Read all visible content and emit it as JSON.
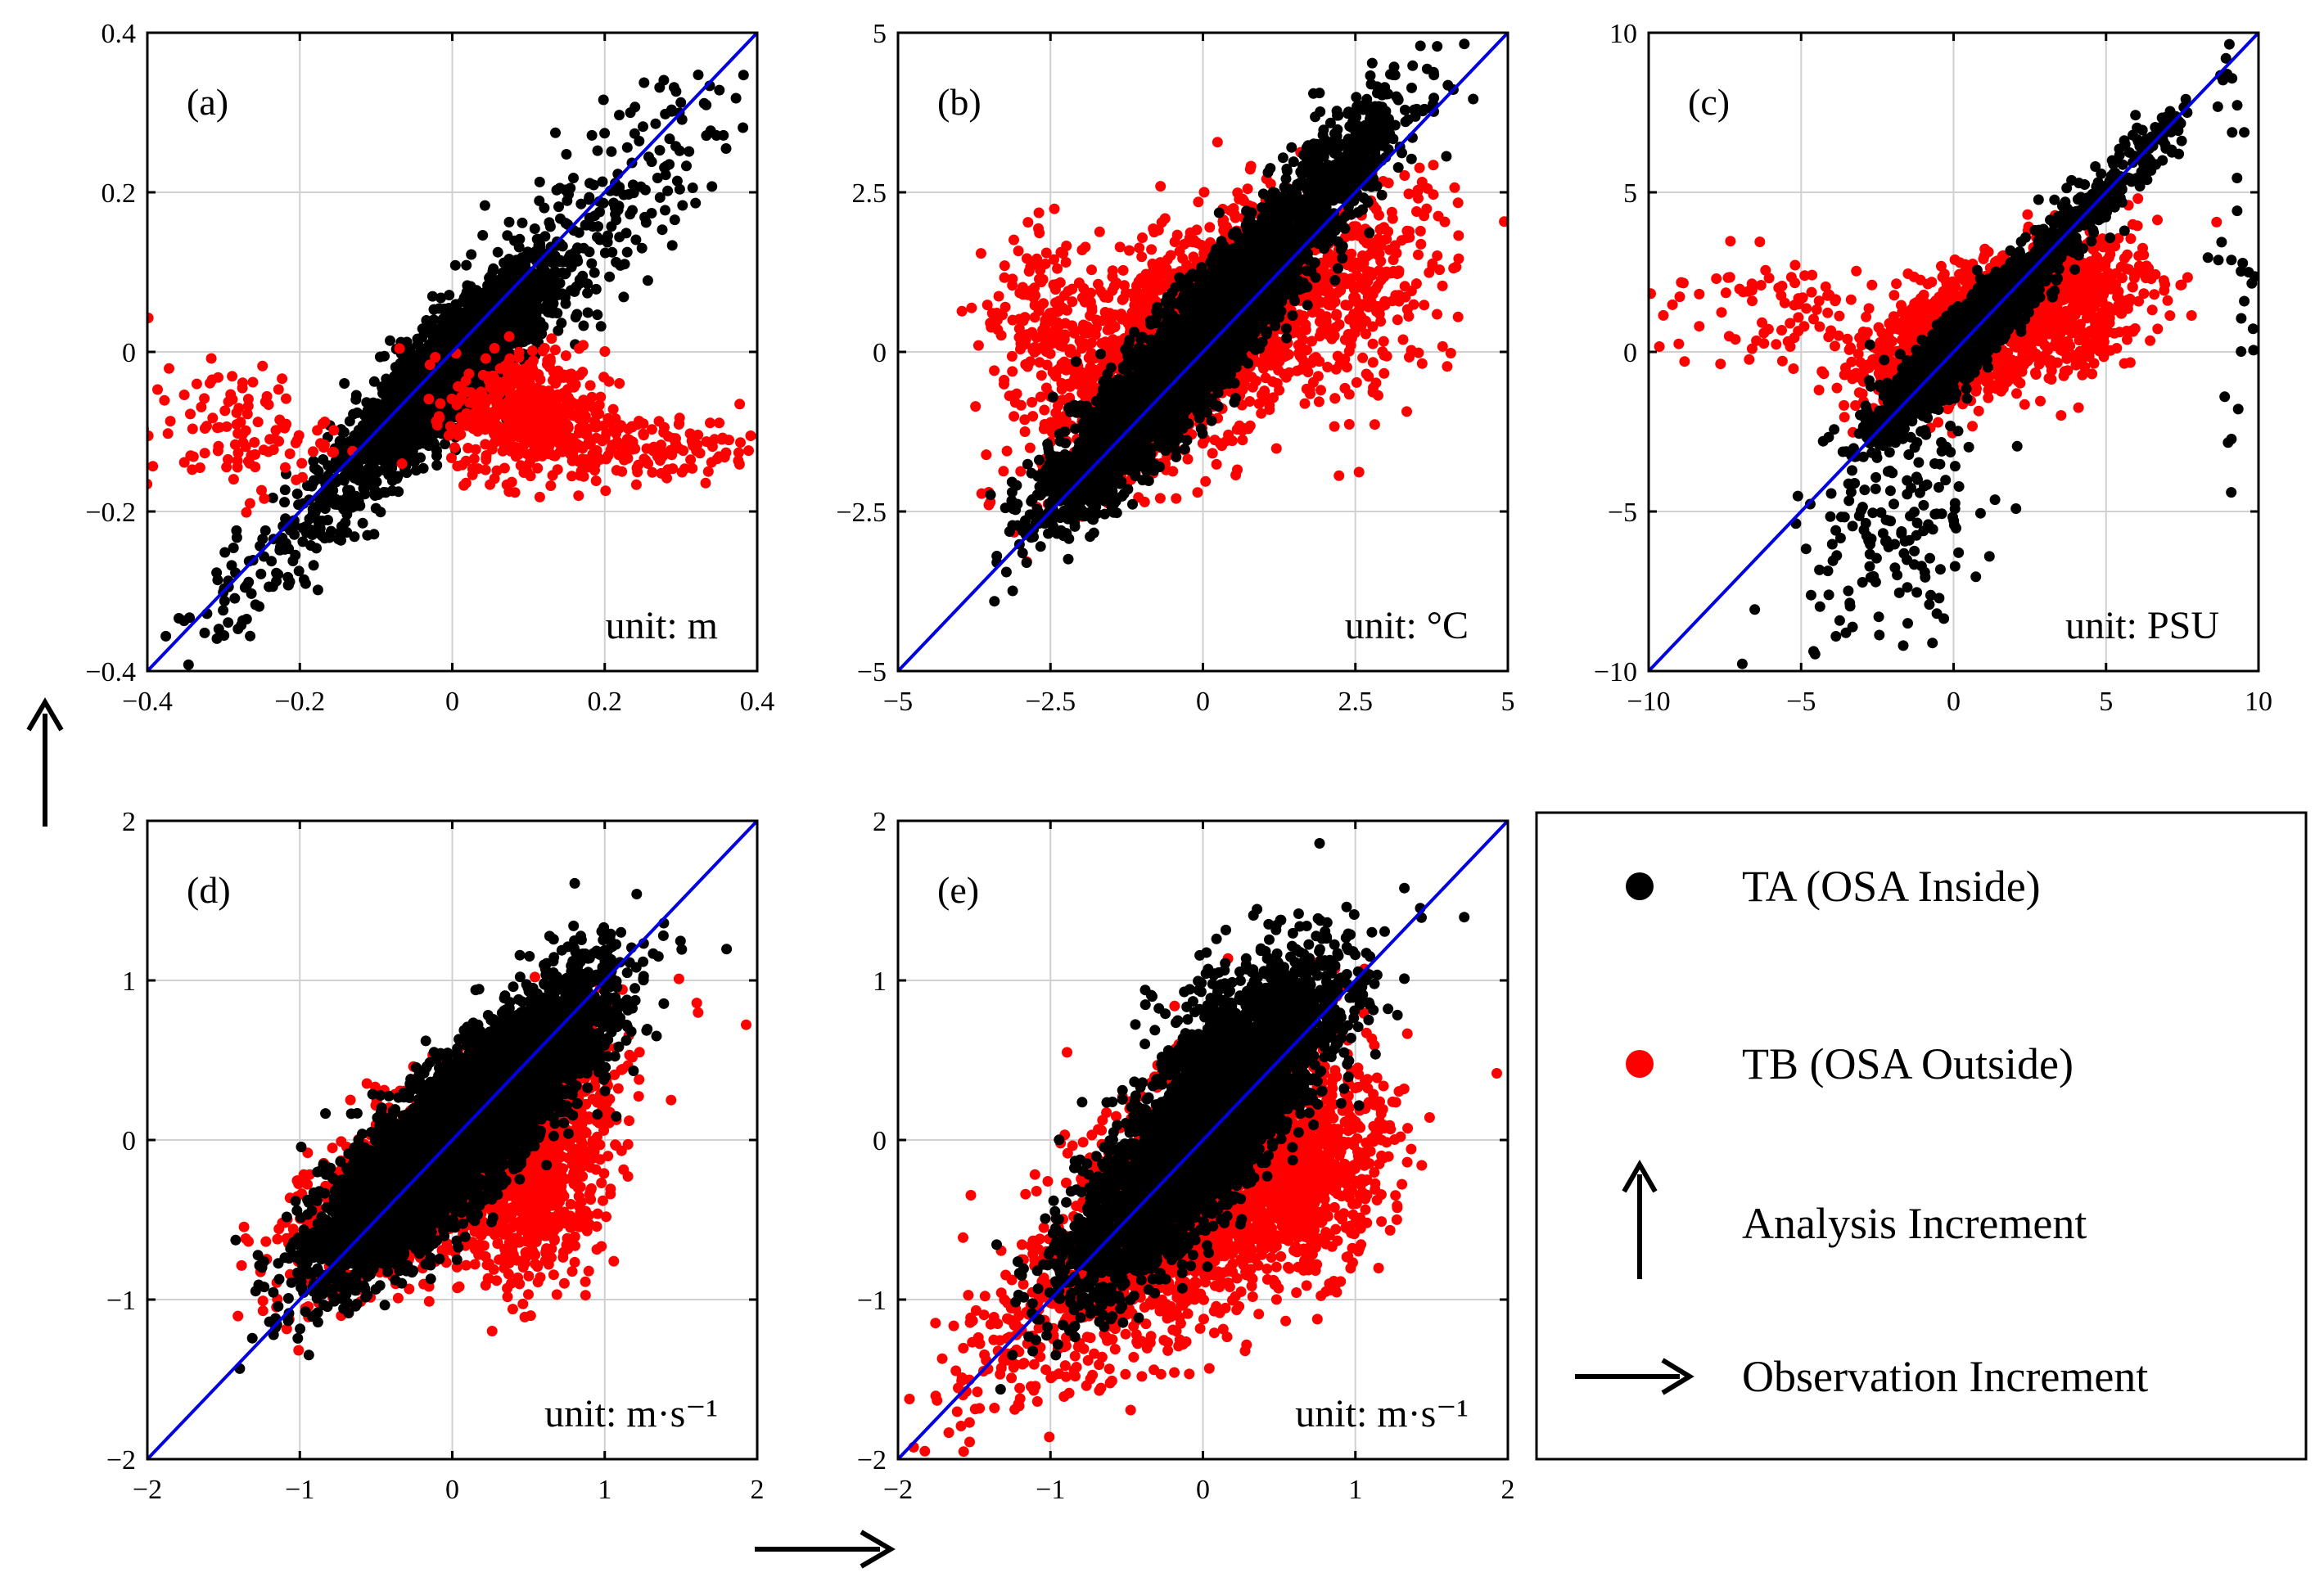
{
  "chart_data": [
    {
      "type": "scatter",
      "id": "a",
      "panel_label": "(a)",
      "unit": "unit: m",
      "xlim": [
        -0.4,
        0.4
      ],
      "ylim": [
        -0.4,
        0.4
      ],
      "xticks": [
        -0.4,
        -0.2,
        0,
        0.2,
        0.4
      ],
      "yticks": [
        -0.4,
        -0.2,
        0,
        0.2,
        0.4
      ],
      "xtick_labels": [
        "−0.4",
        "−0.2",
        "0",
        "0.2",
        "0.4"
      ],
      "ytick_labels": [
        "−0.4",
        "−0.2",
        "0",
        "0.2",
        "0.4"
      ],
      "grid": true,
      "reference_line": "y = x",
      "series": [
        {
          "name": "TA (OSA Inside)",
          "color": "#000000",
          "clusters": [
            {
              "cx": 0.0,
              "cy": -0.02,
              "sx": 0.06,
              "sy": 0.06,
              "corr": 0.85,
              "n": 2600
            },
            {
              "cx": 0.16,
              "cy": 0.14,
              "sx": 0.1,
              "sy": 0.1,
              "corr": 0.8,
              "n": 260
            },
            {
              "cx": -0.15,
              "cy": -0.18,
              "sx": 0.09,
              "sy": 0.09,
              "corr": 0.9,
              "n": 260
            }
          ]
        },
        {
          "name": "TB (OSA Outside)",
          "color": "#ff0000",
          "clusters": [
            {
              "cx": 0.1,
              "cy": -0.08,
              "sx": 0.05,
              "sy": 0.04,
              "corr": 0.0,
              "n": 500
            },
            {
              "cx": 0.25,
              "cy": -0.12,
              "sx": 0.08,
              "sy": 0.02,
              "corr": 0.0,
              "n": 140
            },
            {
              "cx": -0.28,
              "cy": -0.1,
              "sx": 0.06,
              "sy": 0.04,
              "corr": 0.0,
              "n": 110
            }
          ]
        }
      ]
    },
    {
      "type": "scatter",
      "id": "b",
      "panel_label": "(b)",
      "unit": "unit: °C",
      "xlim": [
        -5,
        5
      ],
      "ylim": [
        -5,
        5
      ],
      "xticks": [
        -5,
        -2.5,
        0,
        2.5,
        5
      ],
      "yticks": [
        -5,
        -2.5,
        0,
        2.5,
        5
      ],
      "xtick_labels": [
        "−5",
        "−2.5",
        "0",
        "2.5",
        "5"
      ],
      "ytick_labels": [
        "−5",
        "−2.5",
        "0",
        "2.5",
        "5"
      ],
      "grid": true,
      "reference_line": "y = x",
      "series": [
        {
          "name": "TB (OSA Outside)",
          "color": "#ff0000",
          "clusters": [
            {
              "cx": -0.2,
              "cy": 0.2,
              "sx": 1.2,
              "sy": 1.0,
              "corr": 0.6,
              "n": 2000
            },
            {
              "cx": 2.5,
              "cy": 1.0,
              "sx": 0.8,
              "sy": 0.9,
              "corr": 0.3,
              "n": 300
            },
            {
              "cx": -2.6,
              "cy": 0.6,
              "sx": 0.5,
              "sy": 0.6,
              "corr": 0.0,
              "n": 150
            }
          ]
        },
        {
          "name": "TA (OSA Inside)",
          "color": "#000000",
          "clusters": [
            {
              "cx": -0.1,
              "cy": 0.1,
              "sx": 1.0,
              "sy": 1.1,
              "corr": 0.9,
              "n": 3500
            },
            {
              "cx": 2.2,
              "cy": 2.9,
              "sx": 0.7,
              "sy": 0.7,
              "corr": 0.8,
              "n": 400
            },
            {
              "cx": -2.0,
              "cy": -2.0,
              "sx": 0.5,
              "sy": 0.5,
              "corr": 0.6,
              "n": 250
            }
          ]
        }
      ]
    },
    {
      "type": "scatter",
      "id": "c",
      "panel_label": "(c)",
      "unit": "unit: PSU",
      "xlim": [
        -10,
        10
      ],
      "ylim": [
        -10,
        10
      ],
      "xticks": [
        -10,
        -5,
        0,
        5,
        10
      ],
      "yticks": [
        -10,
        -5,
        0,
        5,
        10
      ],
      "xtick_labels": [
        "−10",
        "−5",
        "0",
        "5",
        "10"
      ],
      "ytick_labels": [
        "−10",
        "−5",
        "0",
        "5",
        "10"
      ],
      "grid": true,
      "reference_line": "y = x",
      "series": [
        {
          "name": "TB (OSA Outside)",
          "color": "#ff0000",
          "clusters": [
            {
              "cx": 0.5,
              "cy": 0.6,
              "sx": 1.6,
              "sy": 1.1,
              "corr": 0.6,
              "n": 1600
            },
            {
              "cx": 4.0,
              "cy": 1.5,
              "sx": 1.4,
              "sy": 1.2,
              "corr": 0.3,
              "n": 400
            },
            {
              "cx": -6.0,
              "cy": 1.2,
              "sx": 2.0,
              "sy": 1.0,
              "corr": 0.0,
              "n": 90
            }
          ]
        },
        {
          "name": "TA (OSA Inside)",
          "color": "#000000",
          "clusters": [
            {
              "cx": 0.3,
              "cy": 0.3,
              "sx": 1.3,
              "sy": 1.3,
              "corr": 0.92,
              "n": 2200
            },
            {
              "cx": 4.5,
              "cy": 4.5,
              "sx": 1.8,
              "sy": 1.8,
              "corr": 0.95,
              "n": 300
            },
            {
              "cx": -2.0,
              "cy": -5.5,
              "sx": 1.8,
              "sy": 2.0,
              "corr": 0.4,
              "n": 160
            },
            {
              "cx": 9.3,
              "cy": 2.0,
              "sx": 0.5,
              "sy": 3.0,
              "corr": 0.0,
              "n": 30
            }
          ]
        }
      ]
    },
    {
      "type": "scatter",
      "id": "d",
      "panel_label": "(d)",
      "unit": "unit: m·s⁻¹",
      "xlim": [
        -2,
        2
      ],
      "ylim": [
        -2,
        2
      ],
      "xticks": [
        -2,
        -1,
        0,
        1,
        2
      ],
      "yticks": [
        -2,
        -1,
        0,
        1,
        2
      ],
      "xtick_labels": [
        "−2",
        "−1",
        "0",
        "1",
        "2"
      ],
      "ytick_labels": [
        "−2",
        "−1",
        "0",
        "1",
        "2"
      ],
      "grid": true,
      "reference_line": "y = x",
      "series": [
        {
          "name": "TB (OSA Outside)",
          "color": "#ff0000",
          "clusters": [
            {
              "cx": 0.0,
              "cy": -0.1,
              "sx": 0.45,
              "sy": 0.35,
              "corr": 0.7,
              "n": 2500
            },
            {
              "cx": 0.55,
              "cy": -0.35,
              "sx": 0.22,
              "sy": 0.28,
              "corr": 0.3,
              "n": 600
            }
          ]
        },
        {
          "name": "TA (OSA Inside)",
          "color": "#000000",
          "clusters": [
            {
              "cx": 0.0,
              "cy": 0.0,
              "sx": 0.42,
              "sy": 0.4,
              "corr": 0.82,
              "n": 5000
            },
            {
              "cx": 0.7,
              "cy": 0.8,
              "sx": 0.25,
              "sy": 0.25,
              "corr": 0.6,
              "n": 300
            }
          ]
        }
      ]
    },
    {
      "type": "scatter",
      "id": "e",
      "panel_label": "(e)",
      "unit": "unit: m·s⁻¹",
      "xlim": [
        -2,
        2
      ],
      "ylim": [
        -2,
        2
      ],
      "xticks": [
        -2,
        -1,
        0,
        1,
        2
      ],
      "yticks": [
        -2,
        -1,
        0,
        1,
        2
      ],
      "xtick_labels": [
        "−2",
        "−1",
        "0",
        "1",
        "2"
      ],
      "ytick_labels": [
        "−2",
        "−1",
        "0",
        "1",
        "2"
      ],
      "grid": true,
      "reference_line": "y = x",
      "series": [
        {
          "name": "TB (OSA Outside)",
          "color": "#ff0000",
          "clusters": [
            {
              "cx": 0.0,
              "cy": -0.3,
              "sx": 0.45,
              "sy": 0.45,
              "corr": 0.55,
              "n": 2400
            },
            {
              "cx": 0.7,
              "cy": -0.3,
              "sx": 0.25,
              "sy": 0.3,
              "corr": 0.3,
              "n": 500
            },
            {
              "cx": -1.2,
              "cy": -1.2,
              "sx": 0.3,
              "sy": 0.35,
              "corr": 0.6,
              "n": 150
            }
          ]
        },
        {
          "name": "TA (OSA Inside)",
          "color": "#000000",
          "clusters": [
            {
              "cx": 0.0,
              "cy": 0.05,
              "sx": 0.4,
              "sy": 0.45,
              "corr": 0.82,
              "n": 4500
            },
            {
              "cx": 0.3,
              "cy": 0.8,
              "sx": 0.3,
              "sy": 0.25,
              "corr": 0.4,
              "n": 300
            }
          ]
        }
      ]
    }
  ],
  "legend": {
    "placement": "bottom-right",
    "items": [
      {
        "symbol": "dot",
        "color": "#000000",
        "label": "TA (OSA Inside)"
      },
      {
        "symbol": "dot",
        "color": "#ff0000",
        "label": "TB (OSA Outside)"
      },
      {
        "symbol": "arrow-up",
        "color": "#000000",
        "label": "Analysis Increment"
      },
      {
        "symbol": "arrow-right",
        "color": "#000000",
        "label": "Observation Increment"
      }
    ]
  },
  "axis_indicators": {
    "y_axis": "arrow-up",
    "x_axis": "arrow-right"
  },
  "colors": {
    "reference_line": "#0000e0",
    "grid": "#d0d0d0",
    "inside": "#000000",
    "outside": "#ff0000"
  }
}
